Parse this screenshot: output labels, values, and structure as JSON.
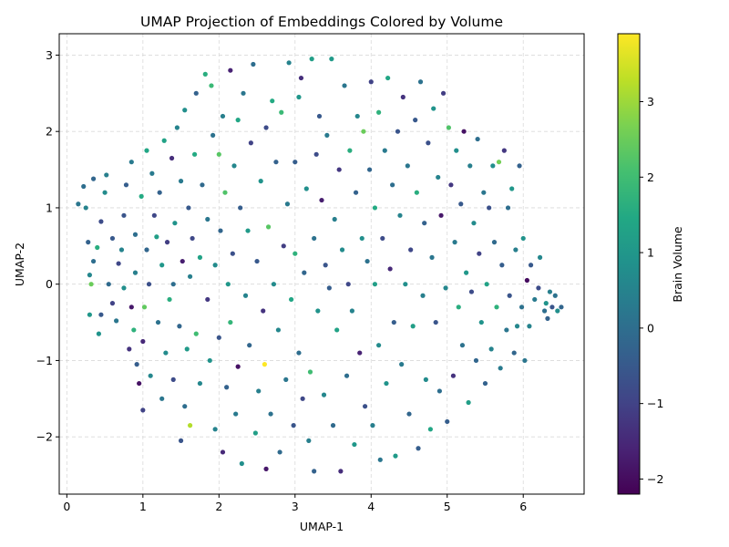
{
  "chart_data": {
    "type": "scatter",
    "title": "UMAP Projection of Embeddings Colored by Volume",
    "xlabel": "UMAP-1",
    "ylabel": "UMAP-2",
    "xlim": [
      -0.1,
      6.8
    ],
    "ylim": [
      -2.75,
      3.28
    ],
    "xticks": [
      "0",
      "1",
      "2",
      "3",
      "4",
      "5",
      "6"
    ],
    "yticks": [
      "−2",
      "−1",
      "0",
      "1",
      "2",
      "3"
    ],
    "grid": true,
    "colorbar": {
      "label": "Brain Volume",
      "colormap": "viridis",
      "range": [
        -2.2,
        3.9
      ],
      "ticks": [
        "−2",
        "−1",
        "0",
        "1",
        "2",
        "3"
      ]
    },
    "points": [
      {
        "x": 0.15,
        "y": 1.05,
        "c": 0.2
      },
      {
        "x": 0.22,
        "y": 1.28,
        "c": 0.0
      },
      {
        "x": 0.25,
        "y": 1.0,
        "c": 0.5
      },
      {
        "x": 0.28,
        "y": 0.55,
        "c": -0.3
      },
      {
        "x": 0.3,
        "y": 0.12,
        "c": 0.6
      },
      {
        "x": 0.32,
        "y": 0.0,
        "c": 2.5
      },
      {
        "x": 0.35,
        "y": 0.3,
        "c": 0.0
      },
      {
        "x": 0.35,
        "y": 1.38,
        "c": -0.2
      },
      {
        "x": 0.3,
        "y": -0.4,
        "c": 1.0
      },
      {
        "x": 0.45,
        "y": -0.4,
        "c": -0.5
      },
      {
        "x": 0.42,
        "y": -0.65,
        "c": 0.9
      },
      {
        "x": 0.4,
        "y": 0.48,
        "c": 1.6
      },
      {
        "x": 0.45,
        "y": 0.82,
        "c": -0.8
      },
      {
        "x": 0.5,
        "y": 1.2,
        "c": 0.7
      },
      {
        "x": 0.52,
        "y": 1.43,
        "c": 0.4
      },
      {
        "x": 0.6,
        "y": 0.6,
        "c": -0.5
      },
      {
        "x": 0.55,
        "y": 0.0,
        "c": -0.1
      },
      {
        "x": 0.6,
        "y": -0.25,
        "c": -1.0
      },
      {
        "x": 0.65,
        "y": -0.48,
        "c": 0.2
      },
      {
        "x": 0.68,
        "y": 0.27,
        "c": -0.9
      },
      {
        "x": 0.72,
        "y": 0.45,
        "c": 0.5
      },
      {
        "x": 0.75,
        "y": -0.05,
        "c": 0.8
      },
      {
        "x": 0.75,
        "y": 0.9,
        "c": -0.6
      },
      {
        "x": 0.78,
        "y": 1.3,
        "c": -0.4
      },
      {
        "x": 0.82,
        "y": -0.85,
        "c": -1.3
      },
      {
        "x": 0.85,
        "y": 1.6,
        "c": 0.3
      },
      {
        "x": 0.85,
        "y": -0.3,
        "c": -1.8
      },
      {
        "x": 0.88,
        "y": -0.6,
        "c": 1.7
      },
      {
        "x": 0.9,
        "y": 0.15,
        "c": 0.4
      },
      {
        "x": 0.9,
        "y": 0.65,
        "c": 0.0
      },
      {
        "x": 0.92,
        "y": -1.05,
        "c": -0.4
      },
      {
        "x": 0.95,
        "y": -1.3,
        "c": -1.9
      },
      {
        "x": 0.98,
        "y": 1.15,
        "c": 1.5
      },
      {
        "x": 1.0,
        "y": -1.65,
        "c": -1.0
      },
      {
        "x": 1.0,
        "y": -0.75,
        "c": -1.5
      },
      {
        "x": 1.02,
        "y": -0.3,
        "c": 2.4
      },
      {
        "x": 1.05,
        "y": 0.45,
        "c": -0.2
      },
      {
        "x": 1.05,
        "y": 1.75,
        "c": 1.4
      },
      {
        "x": 1.08,
        "y": 0.0,
        "c": -0.7
      },
      {
        "x": 1.1,
        "y": -1.2,
        "c": 0.6
      },
      {
        "x": 1.12,
        "y": 1.45,
        "c": 0.3
      },
      {
        "x": 1.15,
        "y": 0.9,
        "c": -0.9
      },
      {
        "x": 1.18,
        "y": 0.62,
        "c": 1.2
      },
      {
        "x": 1.2,
        "y": -0.5,
        "c": 0.1
      },
      {
        "x": 1.22,
        "y": 1.2,
        "c": -0.3
      },
      {
        "x": 1.25,
        "y": -1.5,
        "c": 0.2
      },
      {
        "x": 1.25,
        "y": 0.25,
        "c": 1.0
      },
      {
        "x": 1.28,
        "y": 1.88,
        "c": 1.3
      },
      {
        "x": 1.3,
        "y": -0.9,
        "c": 0.7
      },
      {
        "x": 1.32,
        "y": 0.55,
        "c": -1.1
      },
      {
        "x": 1.35,
        "y": -0.2,
        "c": 1.6
      },
      {
        "x": 1.38,
        "y": 1.65,
        "c": -1.4
      },
      {
        "x": 1.4,
        "y": 0.0,
        "c": 0.0
      },
      {
        "x": 1.4,
        "y": -1.25,
        "c": -0.8
      },
      {
        "x": 1.42,
        "y": 0.8,
        "c": 0.9
      },
      {
        "x": 1.45,
        "y": 2.05,
        "c": 0.5
      },
      {
        "x": 1.48,
        "y": -0.55,
        "c": -0.2
      },
      {
        "x": 1.5,
        "y": 1.35,
        "c": 0.3
      },
      {
        "x": 1.5,
        "y": -2.05,
        "c": -0.6
      },
      {
        "x": 1.52,
        "y": 0.3,
        "c": -1.7
      },
      {
        "x": 1.55,
        "y": 2.28,
        "c": 0.8
      },
      {
        "x": 1.55,
        "y": -1.6,
        "c": 0.0
      },
      {
        "x": 1.58,
        "y": -0.85,
        "c": 1.1
      },
      {
        "x": 1.6,
        "y": 1.0,
        "c": -0.5
      },
      {
        "x": 1.62,
        "y": -1.85,
        "c": 3.2
      },
      {
        "x": 1.62,
        "y": 0.1,
        "c": 0.4
      },
      {
        "x": 1.65,
        "y": 0.6,
        "c": -0.9
      },
      {
        "x": 1.68,
        "y": 1.7,
        "c": 1.5
      },
      {
        "x": 1.7,
        "y": -0.65,
        "c": 2.0
      },
      {
        "x": 1.7,
        "y": 2.5,
        "c": -0.3
      },
      {
        "x": 1.75,
        "y": -1.3,
        "c": 0.6
      },
      {
        "x": 1.75,
        "y": 0.35,
        "c": 1.3
      },
      {
        "x": 1.78,
        "y": 1.3,
        "c": -0.1
      },
      {
        "x": 1.82,
        "y": 2.75,
        "c": 1.6
      },
      {
        "x": 1.85,
        "y": -0.2,
        "c": -1.2
      },
      {
        "x": 1.85,
        "y": 0.85,
        "c": 0.2
      },
      {
        "x": 1.88,
        "y": -1.0,
        "c": 0.9
      },
      {
        "x": 1.9,
        "y": 2.6,
        "c": 1.9
      },
      {
        "x": 1.92,
        "y": 1.95,
        "c": 0.1
      },
      {
        "x": 1.95,
        "y": -1.9,
        "c": 0.5
      },
      {
        "x": 1.95,
        "y": 0.25,
        "c": 0.7
      },
      {
        "x": 2.0,
        "y": 1.7,
        "c": 2.3
      },
      {
        "x": 2.0,
        "y": -0.7,
        "c": -0.6
      },
      {
        "x": 2.02,
        "y": 0.7,
        "c": -0.2
      },
      {
        "x": 2.05,
        "y": -2.2,
        "c": -1.5
      },
      {
        "x": 2.05,
        "y": 2.2,
        "c": 0.4
      },
      {
        "x": 2.08,
        "y": 1.2,
        "c": 2.2
      },
      {
        "x": 2.1,
        "y": -1.35,
        "c": -0.3
      },
      {
        "x": 2.12,
        "y": 0.0,
        "c": 1.0
      },
      {
        "x": 2.15,
        "y": 2.8,
        "c": -1.6
      },
      {
        "x": 2.15,
        "y": -0.5,
        "c": 1.8
      },
      {
        "x": 2.18,
        "y": 0.4,
        "c": -0.7
      },
      {
        "x": 2.2,
        "y": 1.55,
        "c": 0.6
      },
      {
        "x": 2.22,
        "y": -1.7,
        "c": 0.3
      },
      {
        "x": 2.25,
        "y": 2.15,
        "c": 1.4
      },
      {
        "x": 2.25,
        "y": -1.08,
        "c": -1.9
      },
      {
        "x": 2.28,
        "y": 1.0,
        "c": -0.4
      },
      {
        "x": 2.3,
        "y": -2.35,
        "c": 0.8
      },
      {
        "x": 2.32,
        "y": 2.5,
        "c": 0.2
      },
      {
        "x": 2.35,
        "y": -0.15,
        "c": 0.5
      },
      {
        "x": 2.38,
        "y": 0.7,
        "c": 1.1
      },
      {
        "x": 2.4,
        "y": -0.8,
        "c": -0.2
      },
      {
        "x": 2.42,
        "y": 1.85,
        "c": -1.0
      },
      {
        "x": 2.45,
        "y": 2.88,
        "c": 0.0
      },
      {
        "x": 2.48,
        "y": -1.95,
        "c": 1.2
      },
      {
        "x": 2.5,
        "y": 0.3,
        "c": -0.5
      },
      {
        "x": 2.52,
        "y": -1.4,
        "c": 0.4
      },
      {
        "x": 2.55,
        "y": 1.35,
        "c": 0.9
      },
      {
        "x": 2.58,
        "y": -0.35,
        "c": -1.3
      },
      {
        "x": 2.6,
        "y": -1.05,
        "c": 3.9
      },
      {
        "x": 2.62,
        "y": 2.05,
        "c": -0.8
      },
      {
        "x": 2.62,
        "y": -2.42,
        "c": -1.8
      },
      {
        "x": 2.65,
        "y": 0.75,
        "c": 2.3
      },
      {
        "x": 2.68,
        "y": -1.7,
        "c": 0.1
      },
      {
        "x": 2.7,
        "y": 2.4,
        "c": 1.5
      },
      {
        "x": 2.72,
        "y": 0.0,
        "c": 0.7
      },
      {
        "x": 2.75,
        "y": 1.6,
        "c": -0.3
      },
      {
        "x": 2.78,
        "y": -0.6,
        "c": 0.6
      },
      {
        "x": 2.8,
        "y": -2.2,
        "c": -0.1
      },
      {
        "x": 2.82,
        "y": 2.25,
        "c": 1.9
      },
      {
        "x": 2.85,
        "y": 0.5,
        "c": -1.1
      },
      {
        "x": 2.88,
        "y": -1.25,
        "c": 0.2
      },
      {
        "x": 2.9,
        "y": 1.05,
        "c": 0.3
      },
      {
        "x": 2.92,
        "y": 2.9,
        "c": 0.5
      },
      {
        "x": 2.95,
        "y": -0.2,
        "c": 1.4
      },
      {
        "x": 2.98,
        "y": -1.85,
        "c": -0.6
      },
      {
        "x": 3.0,
        "y": 0.4,
        "c": 1.7
      },
      {
        "x": 3.0,
        "y": 1.6,
        "c": -0.4
      },
      {
        "x": 3.05,
        "y": 2.45,
        "c": 1.0
      },
      {
        "x": 3.05,
        "y": -0.9,
        "c": 0.0
      },
      {
        "x": 3.08,
        "y": 2.7,
        "c": -1.4
      },
      {
        "x": 3.1,
        "y": -1.5,
        "c": -0.9
      },
      {
        "x": 3.12,
        "y": 0.15,
        "c": -0.2
      },
      {
        "x": 3.15,
        "y": 1.25,
        "c": 0.8
      },
      {
        "x": 3.18,
        "y": -2.05,
        "c": 0.4
      },
      {
        "x": 3.2,
        "y": -1.15,
        "c": 2.0
      },
      {
        "x": 3.22,
        "y": 2.95,
        "c": 1.2
      },
      {
        "x": 3.25,
        "y": 0.6,
        "c": 0.1
      },
      {
        "x": 3.25,
        "y": -2.45,
        "c": -0.3
      },
      {
        "x": 3.28,
        "y": 1.7,
        "c": -0.8
      },
      {
        "x": 3.3,
        "y": -0.35,
        "c": 0.9
      },
      {
        "x": 3.32,
        "y": 2.2,
        "c": -0.5
      },
      {
        "x": 3.35,
        "y": 1.1,
        "c": -1.7
      },
      {
        "x": 3.38,
        "y": -1.45,
        "c": 0.6
      },
      {
        "x": 3.4,
        "y": 0.25,
        "c": -0.6
      },
      {
        "x": 3.42,
        "y": 1.95,
        "c": 0.3
      },
      {
        "x": 3.45,
        "y": -0.05,
        "c": -0.4
      },
      {
        "x": 3.48,
        "y": 2.95,
        "c": 1.1
      },
      {
        "x": 3.5,
        "y": -1.85,
        "c": -0.1
      },
      {
        "x": 3.52,
        "y": 0.85,
        "c": 0.4
      },
      {
        "x": 3.55,
        "y": -0.6,
        "c": 1.3
      },
      {
        "x": 3.58,
        "y": 1.5,
        "c": -1.2
      },
      {
        "x": 3.6,
        "y": -2.45,
        "c": -1.4
      },
      {
        "x": 3.62,
        "y": 0.45,
        "c": 0.7
      },
      {
        "x": 3.65,
        "y": 2.6,
        "c": 0.2
      },
      {
        "x": 3.68,
        "y": -1.2,
        "c": 0.0
      },
      {
        "x": 3.7,
        "y": 0.0,
        "c": -0.9
      },
      {
        "x": 3.72,
        "y": 1.75,
        "c": 1.6
      },
      {
        "x": 3.75,
        "y": -0.35,
        "c": 0.5
      },
      {
        "x": 3.78,
        "y": -2.1,
        "c": 1.0
      },
      {
        "x": 3.8,
        "y": 1.2,
        "c": -0.3
      },
      {
        "x": 3.82,
        "y": 2.2,
        "c": 0.6
      },
      {
        "x": 3.85,
        "y": -0.9,
        "c": -1.6
      },
      {
        "x": 3.88,
        "y": 0.6,
        "c": 0.8
      },
      {
        "x": 3.9,
        "y": 2.0,
        "c": 2.5
      },
      {
        "x": 3.92,
        "y": -1.6,
        "c": -0.7
      },
      {
        "x": 3.95,
        "y": 0.3,
        "c": 0.1
      },
      {
        "x": 3.98,
        "y": 1.5,
        "c": -0.2
      },
      {
        "x": 4.0,
        "y": 2.65,
        "c": -1.0
      },
      {
        "x": 4.02,
        "y": -1.85,
        "c": 0.4
      },
      {
        "x": 4.05,
        "y": 0.0,
        "c": 1.2
      },
      {
        "x": 4.05,
        "y": 1.0,
        "c": 1.5
      },
      {
        "x": 4.1,
        "y": -0.8,
        "c": 0.7
      },
      {
        "x": 4.1,
        "y": 2.25,
        "c": 1.7
      },
      {
        "x": 4.12,
        "y": -2.3,
        "c": 0.2
      },
      {
        "x": 4.15,
        "y": 0.6,
        "c": -0.8
      },
      {
        "x": 4.18,
        "y": 1.75,
        "c": 0.3
      },
      {
        "x": 4.2,
        "y": -1.3,
        "c": 0.9
      },
      {
        "x": 4.22,
        "y": 2.7,
        "c": 1.4
      },
      {
        "x": 4.25,
        "y": 0.2,
        "c": -1.5
      },
      {
        "x": 4.28,
        "y": 1.3,
        "c": 0.0
      },
      {
        "x": 4.3,
        "y": -0.5,
        "c": -0.4
      },
      {
        "x": 4.32,
        "y": -2.25,
        "c": 1.1
      },
      {
        "x": 4.35,
        "y": 2.0,
        "c": -0.6
      },
      {
        "x": 4.38,
        "y": 0.9,
        "c": 0.5
      },
      {
        "x": 4.4,
        "y": -1.05,
        "c": 0.3
      },
      {
        "x": 4.42,
        "y": 2.45,
        "c": -1.3
      },
      {
        "x": 4.45,
        "y": 0.0,
        "c": 0.8
      },
      {
        "x": 4.48,
        "y": 1.55,
        "c": 0.2
      },
      {
        "x": 4.5,
        "y": -1.7,
        "c": -0.2
      },
      {
        "x": 4.52,
        "y": 0.45,
        "c": -0.9
      },
      {
        "x": 4.55,
        "y": -0.55,
        "c": 1.2
      },
      {
        "x": 4.58,
        "y": 2.15,
        "c": -0.5
      },
      {
        "x": 4.6,
        "y": 1.2,
        "c": 1.6
      },
      {
        "x": 4.62,
        "y": -2.15,
        "c": -0.4
      },
      {
        "x": 4.65,
        "y": 2.65,
        "c": 0.1
      },
      {
        "x": 4.68,
        "y": -0.15,
        "c": 0.4
      },
      {
        "x": 4.7,
        "y": 0.8,
        "c": -0.3
      },
      {
        "x": 4.72,
        "y": -1.25,
        "c": 0.7
      },
      {
        "x": 4.75,
        "y": 1.85,
        "c": -0.7
      },
      {
        "x": 4.78,
        "y": -1.9,
        "c": 1.4
      },
      {
        "x": 4.8,
        "y": 0.35,
        "c": 0.2
      },
      {
        "x": 4.82,
        "y": 2.3,
        "c": 0.9
      },
      {
        "x": 4.85,
        "y": -0.5,
        "c": -0.6
      },
      {
        "x": 4.88,
        "y": 1.4,
        "c": 0.5
      },
      {
        "x": 4.9,
        "y": -1.4,
        "c": 0.0
      },
      {
        "x": 4.92,
        "y": 0.9,
        "c": -1.8
      },
      {
        "x": 4.95,
        "y": 2.5,
        "c": -1.1
      },
      {
        "x": 4.98,
        "y": -0.05,
        "c": 0.6
      },
      {
        "x": 5.0,
        "y": -1.8,
        "c": -0.4
      },
      {
        "x": 5.02,
        "y": 2.05,
        "c": 2.2
      },
      {
        "x": 5.05,
        "y": 1.3,
        "c": -1.2
      },
      {
        "x": 5.08,
        "y": -1.2,
        "c": -1.3
      },
      {
        "x": 5.1,
        "y": 0.55,
        "c": 0.3
      },
      {
        "x": 5.12,
        "y": 1.75,
        "c": 0.8
      },
      {
        "x": 5.15,
        "y": -0.3,
        "c": 1.6
      },
      {
        "x": 5.18,
        "y": 1.05,
        "c": -0.5
      },
      {
        "x": 5.2,
        "y": -0.8,
        "c": 0.1
      },
      {
        "x": 5.22,
        "y": 2.0,
        "c": -1.9
      },
      {
        "x": 5.25,
        "y": 0.15,
        "c": 1.0
      },
      {
        "x": 5.28,
        "y": -1.55,
        "c": 1.2
      },
      {
        "x": 5.3,
        "y": 1.55,
        "c": 0.4
      },
      {
        "x": 5.32,
        "y": -0.1,
        "c": -0.8
      },
      {
        "x": 5.35,
        "y": 0.8,
        "c": 0.7
      },
      {
        "x": 5.38,
        "y": -1.0,
        "c": -0.2
      },
      {
        "x": 5.4,
        "y": 1.9,
        "c": 0.0
      },
      {
        "x": 5.42,
        "y": 0.4,
        "c": -1.0
      },
      {
        "x": 5.45,
        "y": -0.5,
        "c": 0.9
      },
      {
        "x": 5.48,
        "y": 1.2,
        "c": 0.2
      },
      {
        "x": 5.5,
        "y": -1.3,
        "c": -0.3
      },
      {
        "x": 5.52,
        "y": 0.0,
        "c": 1.3
      },
      {
        "x": 5.55,
        "y": 1.0,
        "c": -0.7
      },
      {
        "x": 5.58,
        "y": -0.85,
        "c": 0.5
      },
      {
        "x": 5.6,
        "y": 1.55,
        "c": 0.8
      },
      {
        "x": 5.62,
        "y": 0.55,
        "c": -0.1
      },
      {
        "x": 5.65,
        "y": -0.3,
        "c": 1.7
      },
      {
        "x": 5.68,
        "y": 1.6,
        "c": 2.6
      },
      {
        "x": 5.7,
        "y": -1.1,
        "c": 0.3
      },
      {
        "x": 5.72,
        "y": 0.25,
        "c": -0.4
      },
      {
        "x": 5.75,
        "y": 1.75,
        "c": -1.2
      },
      {
        "x": 5.78,
        "y": -0.6,
        "c": 0.2
      },
      {
        "x": 5.8,
        "y": 1.0,
        "c": 0.0
      },
      {
        "x": 5.82,
        "y": -0.15,
        "c": -0.6
      },
      {
        "x": 5.85,
        "y": 1.25,
        "c": 1.0
      },
      {
        "x": 5.88,
        "y": -0.9,
        "c": -0.2
      },
      {
        "x": 5.9,
        "y": 0.45,
        "c": 0.4
      },
      {
        "x": 5.92,
        "y": -0.55,
        "c": 0.6
      },
      {
        "x": 5.95,
        "y": 1.55,
        "c": -0.3
      },
      {
        "x": 5.98,
        "y": -0.3,
        "c": 0.1
      },
      {
        "x": 6.0,
        "y": 0.6,
        "c": 0.9
      },
      {
        "x": 6.02,
        "y": -1.0,
        "c": 0.2
      },
      {
        "x": 6.05,
        "y": 0.05,
        "c": -2.0
      },
      {
        "x": 6.08,
        "y": -0.55,
        "c": 0.5
      },
      {
        "x": 6.1,
        "y": 0.25,
        "c": -0.5
      },
      {
        "x": 6.15,
        "y": -0.2,
        "c": 0.3
      },
      {
        "x": 6.2,
        "y": -0.05,
        "c": -0.8
      },
      {
        "x": 6.22,
        "y": 0.35,
        "c": 0.6
      },
      {
        "x": 6.28,
        "y": -0.35,
        "c": 0.0
      },
      {
        "x": 6.3,
        "y": -0.25,
        "c": 0.9
      },
      {
        "x": 6.32,
        "y": -0.45,
        "c": -0.3
      },
      {
        "x": 6.35,
        "y": -0.1,
        "c": 0.4
      },
      {
        "x": 6.38,
        "y": -0.3,
        "c": -0.6
      },
      {
        "x": 6.42,
        "y": -0.15,
        "c": 0.1
      },
      {
        "x": 6.45,
        "y": -0.35,
        "c": 0.8
      },
      {
        "x": 6.5,
        "y": -0.3,
        "c": -0.2
      }
    ]
  }
}
